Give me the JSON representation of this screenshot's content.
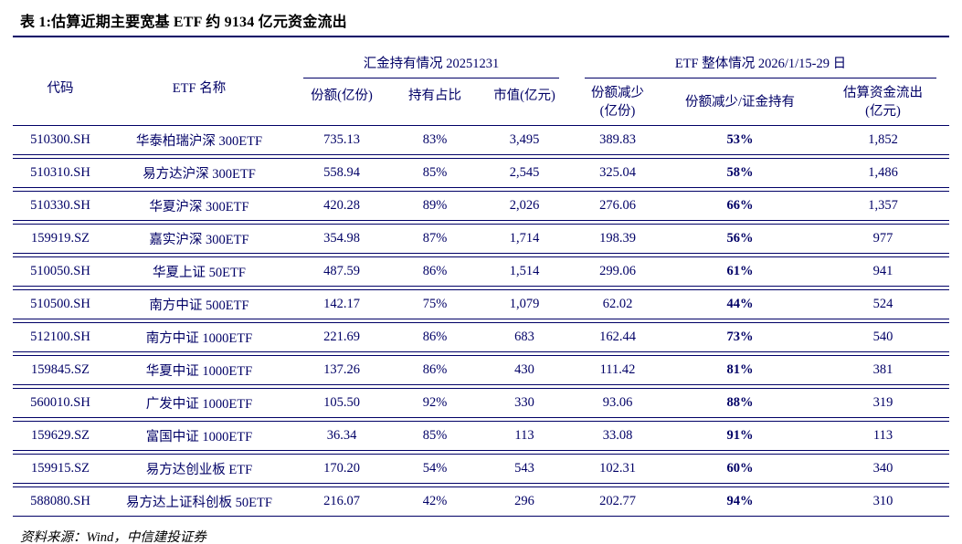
{
  "title": "表 1:估算近期主要宽基 ETF 约 9134 亿元资金流出",
  "colors": {
    "line": "#000066",
    "text": "#000066"
  },
  "table": {
    "group_headers": [
      "汇金持有情况 20251231",
      "ETF 整体情况 2026/1/15-29 日"
    ],
    "columns": [
      {
        "key": "code",
        "label": "代码"
      },
      {
        "key": "name",
        "label": "ETF 名称"
      },
      {
        "key": "huijin-share",
        "label": "份额(亿份)"
      },
      {
        "key": "holding-ratio",
        "label": "持有占比"
      },
      {
        "key": "market-value",
        "label": "市值(亿元)"
      },
      {
        "key": "share-decrease",
        "label": "份额减少",
        "sub": "(亿份)"
      },
      {
        "key": "decrease-over-holding",
        "label": "份额减少/证金持有"
      },
      {
        "key": "estimated-outflow",
        "label": "估算资金流出",
        "sub": "(亿元)"
      }
    ],
    "rows": [
      [
        "510300.SH",
        "华泰柏瑞沪深 300ETF",
        "735.13",
        "83%",
        "3,495",
        "389.83",
        "53%",
        "1,852"
      ],
      [
        "510310.SH",
        "易方达沪深 300ETF",
        "558.94",
        "85%",
        "2,545",
        "325.04",
        "58%",
        "1,486"
      ],
      [
        "510330.SH",
        "华夏沪深 300ETF",
        "420.28",
        "89%",
        "2,026",
        "276.06",
        "66%",
        "1,357"
      ],
      [
        "159919.SZ",
        "嘉实沪深 300ETF",
        "354.98",
        "87%",
        "1,714",
        "198.39",
        "56%",
        "977"
      ],
      [
        "510050.SH",
        "华夏上证 50ETF",
        "487.59",
        "86%",
        "1,514",
        "299.06",
        "61%",
        "941"
      ],
      [
        "510500.SH",
        "南方中证 500ETF",
        "142.17",
        "75%",
        "1,079",
        "62.02",
        "44%",
        "524"
      ],
      [
        "512100.SH",
        "南方中证 1000ETF",
        "221.69",
        "86%",
        "683",
        "162.44",
        "73%",
        "540"
      ],
      [
        "159845.SZ",
        "华夏中证 1000ETF",
        "137.26",
        "86%",
        "430",
        "111.42",
        "81%",
        "381"
      ],
      [
        "560010.SH",
        "广发中证 1000ETF",
        "105.50",
        "92%",
        "330",
        "93.06",
        "88%",
        "319"
      ],
      [
        "159629.SZ",
        "富国中证 1000ETF",
        "36.34",
        "85%",
        "113",
        "33.08",
        "91%",
        "113"
      ],
      [
        "159915.SZ",
        "易方达创业板 ETF",
        "170.20",
        "54%",
        "543",
        "102.31",
        "60%",
        "340"
      ],
      [
        "588080.SH",
        "易方达上证科创板 50ETF",
        "216.07",
        "42%",
        "296",
        "202.77",
        "94%",
        "310"
      ]
    ]
  },
  "footer": "资料来源：Wind，中信建投证券"
}
